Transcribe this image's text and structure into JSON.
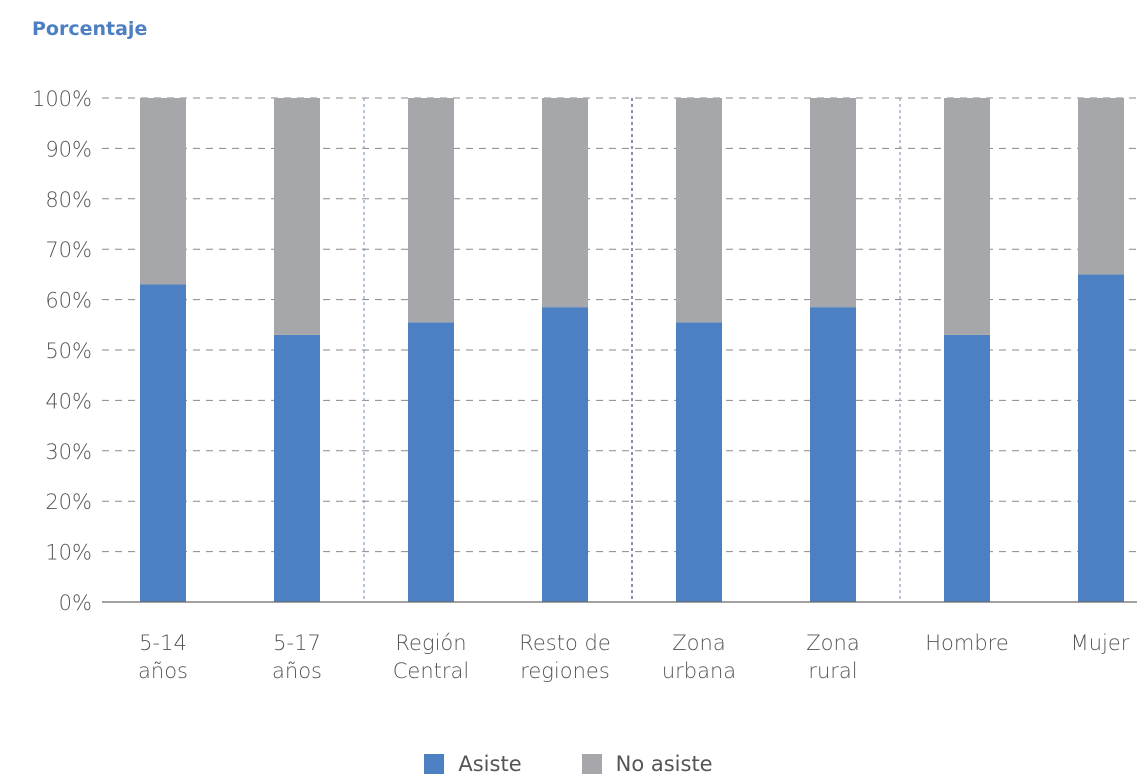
{
  "chart_data": {
    "type": "bar",
    "stacked": true,
    "ylabel": "Porcentaje",
    "ylim": [
      0,
      100
    ],
    "yticks": [
      "0%",
      "10%",
      "20%",
      "30%",
      "40%",
      "50%",
      "60%",
      "70%",
      "80%",
      "90%",
      "100%"
    ],
    "categories": [
      [
        "5-14",
        "años"
      ],
      [
        "5-17",
        "años"
      ],
      [
        "Región",
        "Central"
      ],
      [
        "Resto de",
        "regiones"
      ],
      [
        "Zona",
        "urbana"
      ],
      [
        "Zona",
        "rural"
      ],
      [
        "Hombre"
      ],
      [
        "Mujer"
      ]
    ],
    "series": [
      {
        "name": "Asiste",
        "color": "#4d80c2",
        "values": [
          63,
          53,
          55.5,
          58.5,
          55.5,
          58.5,
          53,
          65
        ]
      },
      {
        "name": "No asiste",
        "color": "#a6a7aa",
        "values": [
          37,
          47,
          44.5,
          41.5,
          44.5,
          41.5,
          47,
          35
        ]
      }
    ],
    "grid": true,
    "legend_position": "bottom-center"
  }
}
